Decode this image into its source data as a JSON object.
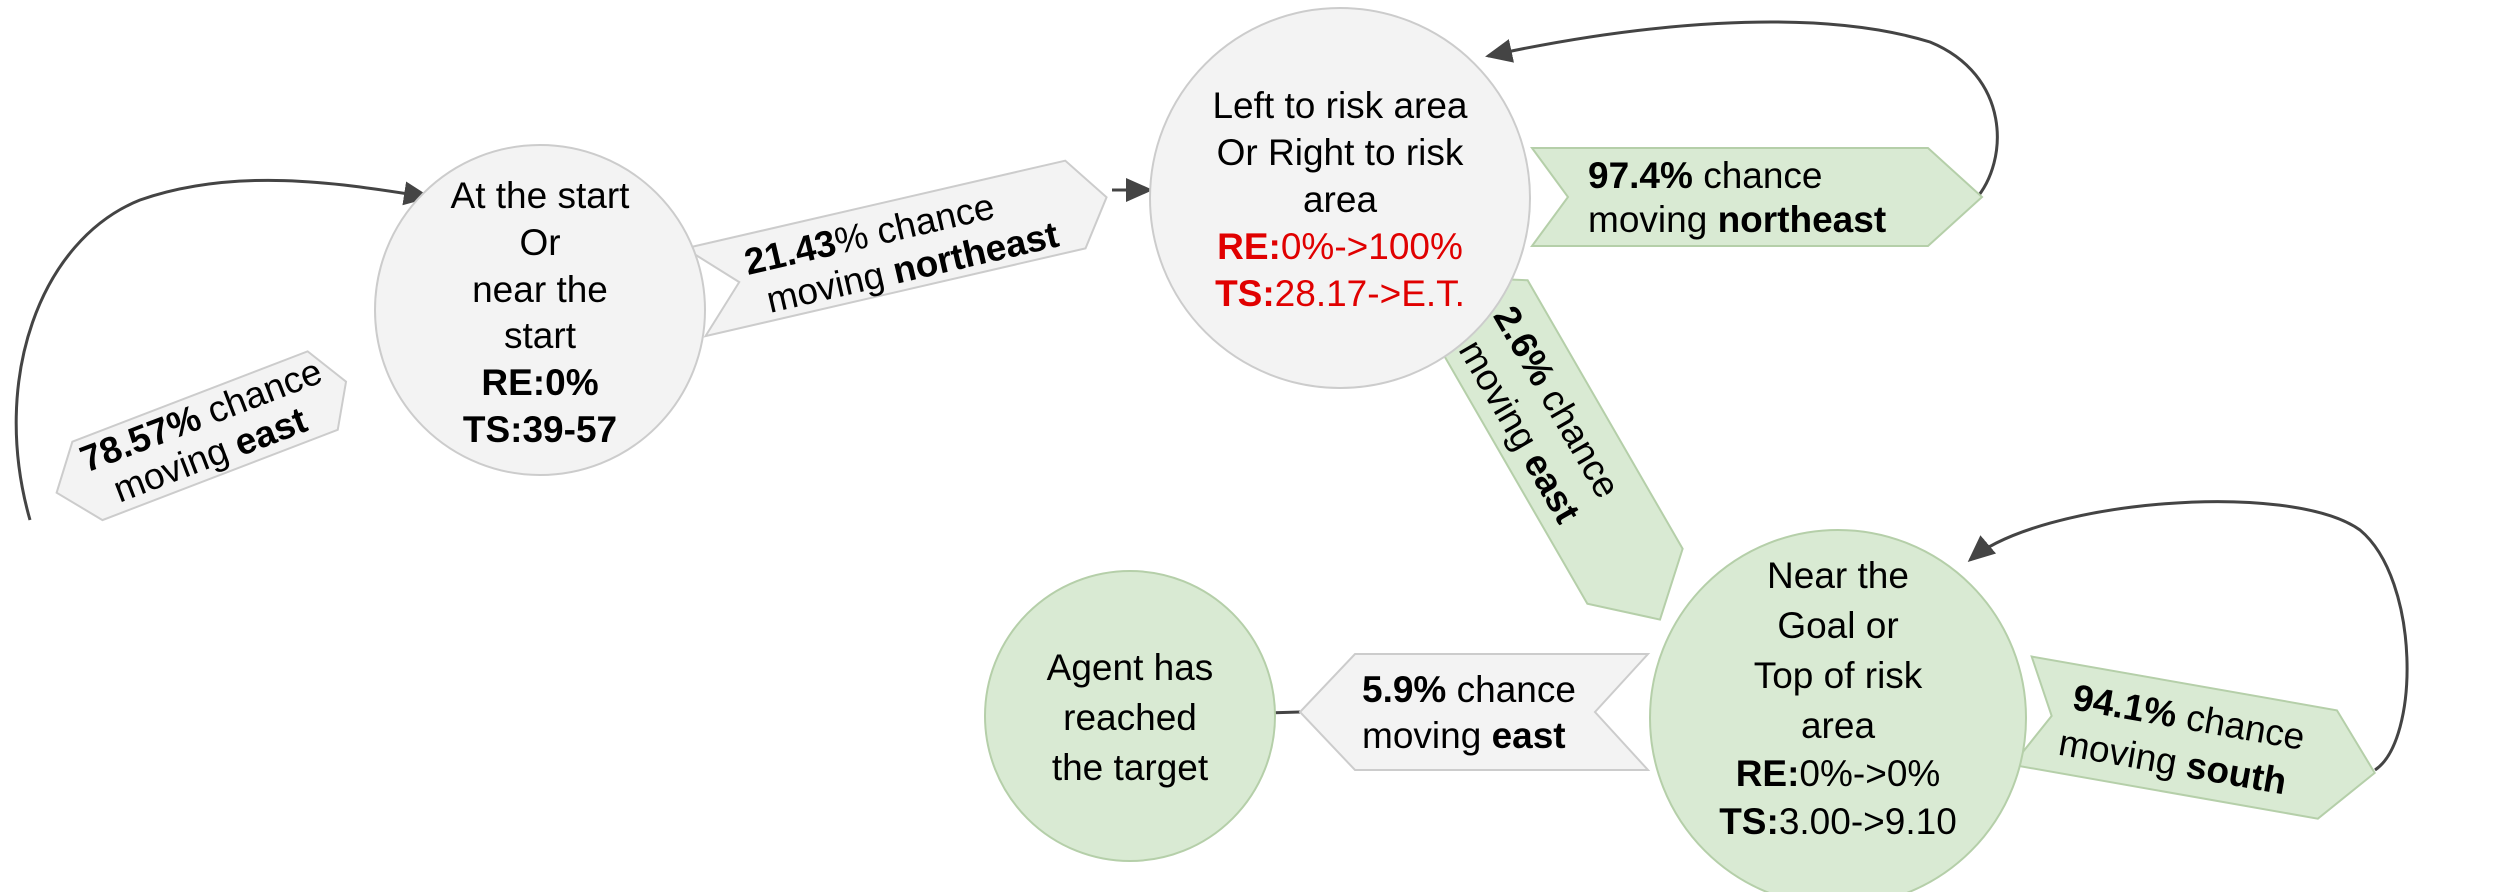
{
  "colors": {
    "gray_fill": "#f3f3f3",
    "gray_stroke": "#cccccc",
    "green_fill": "#d9ead3",
    "green_stroke": "#b5cfa9",
    "edge": "#444444",
    "highlight": "#e00000"
  },
  "nodes": {
    "start": {
      "line1": "At the start",
      "line2": "Or",
      "line3": "near the",
      "line4": "start",
      "re": "RE:0%",
      "ts": "TS:39-57"
    },
    "risk_side": {
      "line1": "Left to risk area",
      "line2": "Or Right to risk",
      "line3": "area",
      "re_label": "RE:",
      "re_value": "0%->100%",
      "ts_label": "TS:",
      "ts_value": "28.17->E.T."
    },
    "goal": {
      "line1": "Near the",
      "line2": "Goal or",
      "line3": "Top of risk",
      "line4": "area",
      "re_label": "RE:",
      "re_value": "0%->0%",
      "ts_label": "TS:",
      "ts_value": "3.00->9.10"
    },
    "target": {
      "line1": "Agent has",
      "line2": "reached",
      "line3": "the target"
    }
  },
  "transitions": {
    "start_self": {
      "pct": "78.57%",
      "chance": " chance",
      "moving": "moving ",
      "dir": "east"
    },
    "start_to_risk": {
      "pct": "21.43",
      "chance": "% chance",
      "moving": "moving ",
      "dir": "northeast"
    },
    "risk_self": {
      "pct": "97.4%",
      "chance": " chance",
      "moving": "moving ",
      "dir": "northeast"
    },
    "risk_to_goal": {
      "pct": "2.6%",
      "chance": " chance",
      "moving": "moving ",
      "dir": "east"
    },
    "goal_self": {
      "pct": "94.1%",
      "chance": " chance",
      "moving": "moving ",
      "dir": "south"
    },
    "goal_to_target": {
      "pct": "5.9%",
      "chance": " chance",
      "moving": "moving ",
      "dir": "east"
    }
  }
}
